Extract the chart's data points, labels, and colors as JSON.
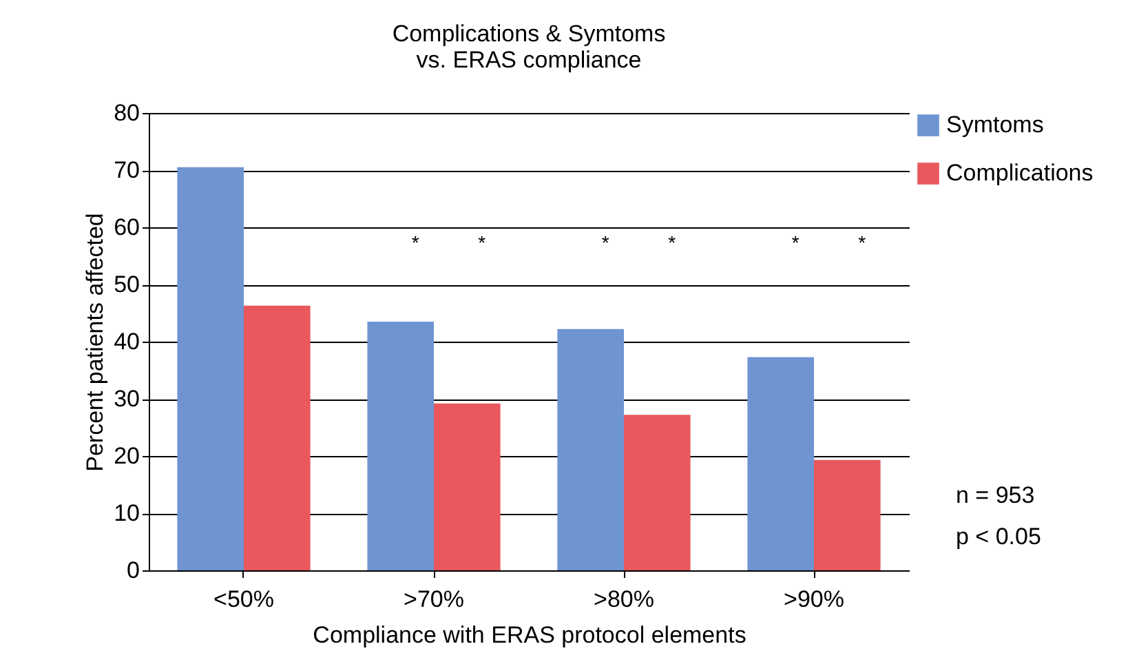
{
  "chart_data": {
    "type": "bar",
    "title": "Complications & Symtoms\nvs. ERAS compliance",
    "xlabel": "Compliance with ERAS protocol elements",
    "ylabel": "Percent patients affected",
    "categories": [
      "<50%",
      ">70%",
      ">80%",
      ">90%"
    ],
    "series": [
      {
        "name": "Symtoms",
        "color": "#6f94d2",
        "values": [
          70.5,
          43.5,
          42.2,
          37.3
        ]
      },
      {
        "name": "Complications",
        "color": "#e8585c",
        "values": [
          46.3,
          29.2,
          27.2,
          19.3
        ]
      }
    ],
    "ylim": [
      0,
      80
    ],
    "yticks": [
      0,
      10,
      20,
      30,
      40,
      50,
      60,
      70,
      80
    ],
    "grid": "y",
    "legend": "right",
    "annotations": [
      "*",
      "*",
      "*",
      "*",
      "*",
      "*",
      "n = 953",
      "p < 0.05"
    ]
  }
}
